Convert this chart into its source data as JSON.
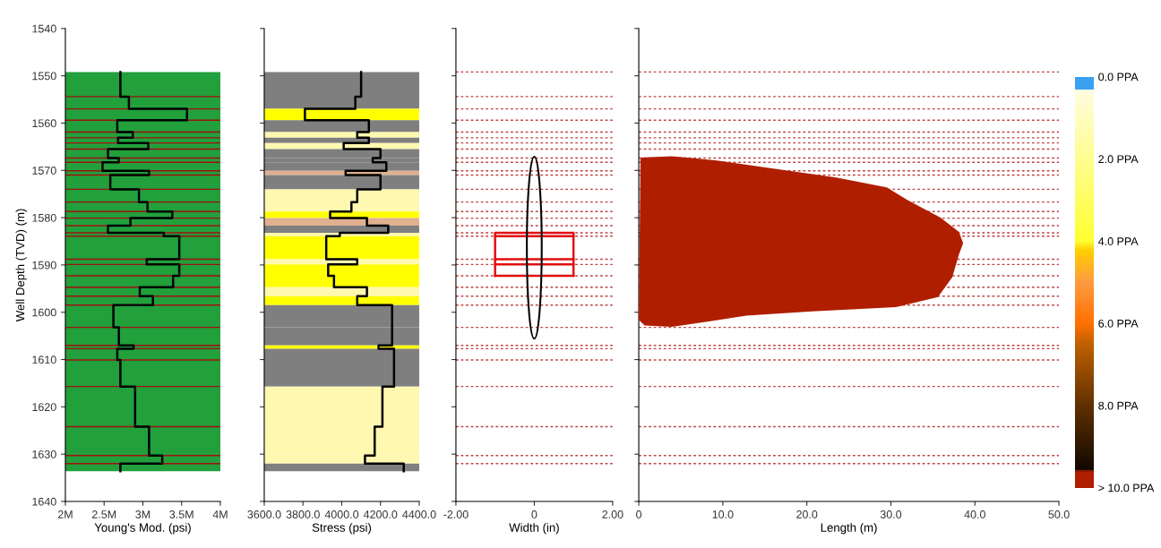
{
  "chart_data": [
    {
      "type": "line",
      "xlabel": "Young's Mod. (psi)",
      "ylabel": "Well Depth (TVD) (m)",
      "xlim": [
        2000000,
        4000000
      ],
      "xticks": [
        {
          "value": 2000000,
          "label": "2M"
        },
        {
          "value": 2500000,
          "label": "2.5M"
        },
        {
          "value": 3000000,
          "label": "3M"
        },
        {
          "value": 3500000,
          "label": "3.5M"
        },
        {
          "value": 4000000,
          "label": "4M"
        }
      ],
      "ylim": [
        1640,
        1540
      ],
      "yticks": [
        1540,
        1550,
        1560,
        1570,
        1580,
        1590,
        1600,
        1610,
        1620,
        1630,
        1640
      ],
      "series": [
        {
          "color": "#000000",
          "x": [
            2710000,
            2710000,
            2820000,
            2820000,
            3570000,
            3570000,
            2670000,
            2670000,
            2870000,
            2870000,
            2680000,
            2680000,
            3070000,
            3070000,
            2550000,
            2550000,
            2690000,
            2690000,
            2480000,
            2480000,
            3080000,
            3080000,
            2580000,
            2580000,
            2950000,
            2950000,
            3060000,
            3060000,
            3380000,
            3380000,
            2840000,
            2840000,
            2550000,
            2550000,
            3270000,
            3270000,
            3470000,
            3470000,
            3050000,
            3050000,
            3470000,
            3470000,
            3390000,
            3390000,
            2960000,
            2960000,
            3130000,
            3130000,
            2620000,
            2620000,
            2690000,
            2690000,
            2880000,
            2880000,
            2670000,
            2670000,
            2710000,
            2710000,
            2900000,
            2900000,
            3080000,
            3080000,
            3250000,
            3250000,
            2710000,
            2710000
          ],
          "values": [
            1549.2,
            1554.4,
            1554.4,
            1557.0,
            1557.0,
            1559.4,
            1559.4,
            1561.9,
            1561.9,
            1563.1,
            1563.1,
            1564.2,
            1564.2,
            1565.5,
            1565.5,
            1567.4,
            1567.4,
            1568.3,
            1568.3,
            1570.1,
            1570.1,
            1571.0,
            1571.0,
            1574.0,
            1574.0,
            1576.7,
            1576.7,
            1578.7,
            1578.7,
            1580.1,
            1580.1,
            1581.7,
            1581.7,
            1583.2,
            1583.2,
            1583.9,
            1583.9,
            1588.8,
            1588.8,
            1589.9,
            1589.9,
            1592.3,
            1592.3,
            1594.7,
            1594.7,
            1596.6,
            1596.6,
            1598.5,
            1598.5,
            1603.2,
            1603.2,
            1607.0,
            1607.0,
            1607.7,
            1607.7,
            1610.1,
            1610.1,
            1615.7,
            1615.7,
            1624.2,
            1624.2,
            1630.3,
            1630.3,
            1632.0,
            1632.0,
            1633.6
          ]
        }
      ],
      "bands": [
        {
          "axis": "y",
          "from": 1549.2,
          "to": 1633.6,
          "color": "#21a03c"
        }
      ],
      "ref_lines": [
        {
          "axis": "y",
          "value": 1554.4,
          "color": "#a01010",
          "line_style": "solid"
        },
        {
          "axis": "y",
          "value": 1557.0,
          "color": "#a01010",
          "line_style": "solid"
        },
        {
          "axis": "y",
          "value": 1559.4,
          "color": "#a01010",
          "line_style": "solid"
        },
        {
          "axis": "y",
          "value": 1561.9,
          "color": "#a01010",
          "line_style": "solid"
        },
        {
          "axis": "y",
          "value": 1563.1,
          "color": "#a01010",
          "line_style": "solid"
        },
        {
          "axis": "y",
          "value": 1564.2,
          "color": "#a01010",
          "line_style": "solid"
        },
        {
          "axis": "y",
          "value": 1565.5,
          "color": "#a01010",
          "line_style": "solid"
        },
        {
          "axis": "y",
          "value": 1567.4,
          "color": "#a01010",
          "line_style": "solid"
        },
        {
          "axis": "y",
          "value": 1568.3,
          "color": "#a01010",
          "line_style": "solid"
        },
        {
          "axis": "y",
          "value": 1570.1,
          "color": "#a01010",
          "line_style": "solid"
        },
        {
          "axis": "y",
          "value": 1571.0,
          "color": "#a01010",
          "line_style": "solid"
        },
        {
          "axis": "y",
          "value": 1574.0,
          "color": "#a01010",
          "line_style": "solid"
        },
        {
          "axis": "y",
          "value": 1576.7,
          "color": "#a01010",
          "line_style": "solid"
        },
        {
          "axis": "y",
          "value": 1578.7,
          "color": "#a01010",
          "line_style": "solid"
        },
        {
          "axis": "y",
          "value": 1580.1,
          "color": "#a01010",
          "line_style": "solid"
        },
        {
          "axis": "y",
          "value": 1581.7,
          "color": "#a01010",
          "line_style": "solid"
        },
        {
          "axis": "y",
          "value": 1583.2,
          "color": "#a01010",
          "line_style": "solid"
        },
        {
          "axis": "y",
          "value": 1583.9,
          "color": "#a01010",
          "line_style": "solid"
        },
        {
          "axis": "y",
          "value": 1588.8,
          "color": "#a01010",
          "line_style": "solid"
        },
        {
          "axis": "y",
          "value": 1589.9,
          "color": "#a01010",
          "line_style": "solid"
        },
        {
          "axis": "y",
          "value": 1592.3,
          "color": "#a01010",
          "line_style": "solid"
        },
        {
          "axis": "y",
          "value": 1594.7,
          "color": "#a01010",
          "line_style": "solid"
        },
        {
          "axis": "y",
          "value": 1596.6,
          "color": "#a01010",
          "line_style": "solid"
        },
        {
          "axis": "y",
          "value": 1598.5,
          "color": "#a01010",
          "line_style": "solid"
        },
        {
          "axis": "y",
          "value": 1603.2,
          "color": "#a01010",
          "line_style": "solid"
        },
        {
          "axis": "y",
          "value": 1607.0,
          "color": "#a01010",
          "line_style": "solid"
        },
        {
          "axis": "y",
          "value": 1607.7,
          "color": "#a01010",
          "line_style": "solid"
        },
        {
          "axis": "y",
          "value": 1610.1,
          "color": "#a01010",
          "line_style": "solid"
        },
        {
          "axis": "y",
          "value": 1615.7,
          "color": "#a01010",
          "line_style": "solid"
        },
        {
          "axis": "y",
          "value": 1624.2,
          "color": "#a01010",
          "line_style": "solid"
        },
        {
          "axis": "y",
          "value": 1630.3,
          "color": "#a01010",
          "line_style": "solid"
        },
        {
          "axis": "y",
          "value": 1632.0,
          "color": "#a01010",
          "line_style": "solid"
        }
      ]
    },
    {
      "type": "line",
      "xlabel": "Stress (psi)",
      "tick_labels": "x",
      "xlim": [
        3600,
        4400
      ],
      "xticks": [
        {
          "value": 3600,
          "label": "3600.0"
        },
        {
          "value": 3800,
          "label": "3800.0"
        },
        {
          "value": 4000,
          "label": "4000.0"
        },
        {
          "value": 4200,
          "label": "4200.0"
        },
        {
          "value": 4400,
          "label": "4400.0"
        }
      ],
      "ylim": [
        1640,
        1540
      ],
      "yticks": [
        1540,
        1550,
        1560,
        1570,
        1580,
        1590,
        1600,
        1610,
        1620,
        1630,
        1640
      ],
      "series": [
        {
          "color": "#000000",
          "x": [
            4100,
            4100,
            4070,
            4070,
            3810,
            3810,
            4140,
            4140,
            4080,
            4080,
            4140,
            4140,
            4010,
            4010,
            4200,
            4200,
            4160,
            4160,
            4230,
            4230,
            4020,
            4020,
            4200,
            4200,
            4080,
            4080,
            4050,
            4050,
            3940,
            3940,
            4130,
            4130,
            4240,
            4240,
            3990,
            3990,
            3920,
            3920,
            4080,
            4080,
            3930,
            3930,
            3960,
            3960,
            4130,
            4130,
            4080,
            4080,
            4260,
            4260,
            4260,
            4260,
            4190,
            4190,
            4270,
            4270,
            4270,
            4270,
            4210,
            4210,
            4170,
            4170,
            4120,
            4120,
            4320,
            4320
          ],
          "values": [
            1549.2,
            1554.4,
            1554.4,
            1557.0,
            1557.0,
            1559.4,
            1559.4,
            1561.9,
            1561.9,
            1563.1,
            1563.1,
            1564.2,
            1564.2,
            1565.5,
            1565.5,
            1567.4,
            1567.4,
            1568.3,
            1568.3,
            1570.1,
            1570.1,
            1571.0,
            1571.0,
            1574.0,
            1574.0,
            1576.7,
            1576.7,
            1578.7,
            1578.7,
            1580.1,
            1580.1,
            1581.7,
            1581.7,
            1583.2,
            1583.2,
            1583.9,
            1583.9,
            1588.8,
            1588.8,
            1589.9,
            1589.9,
            1592.3,
            1592.3,
            1594.7,
            1594.7,
            1596.6,
            1596.6,
            1598.5,
            1598.5,
            1603.2,
            1603.2,
            1607.0,
            1607.0,
            1607.7,
            1607.7,
            1610.1,
            1610.1,
            1615.7,
            1615.7,
            1624.2,
            1624.2,
            1630.3,
            1630.3,
            1632.0,
            1632.0,
            1633.6
          ]
        }
      ],
      "bands": [
        {
          "axis": "y",
          "from": 1549.2,
          "to": 1554.4,
          "color": "#7f7f7f"
        },
        {
          "axis": "y",
          "from": 1554.4,
          "to": 1557.0,
          "color": "#7f7f7f"
        },
        {
          "axis": "y",
          "from": 1557.0,
          "to": 1559.4,
          "color": "#ffff00"
        },
        {
          "axis": "y",
          "from": 1559.4,
          "to": 1561.9,
          "color": "#7f7f7f"
        },
        {
          "axis": "y",
          "from": 1561.9,
          "to": 1563.1,
          "color": "#fff8b0"
        },
        {
          "axis": "y",
          "from": 1563.1,
          "to": 1564.2,
          "color": "#7f7f7f"
        },
        {
          "axis": "y",
          "from": 1564.2,
          "to": 1565.5,
          "color": "#fff8b0"
        },
        {
          "axis": "y",
          "from": 1565.5,
          "to": 1567.4,
          "color": "#7f7f7f"
        },
        {
          "axis": "y",
          "from": 1567.4,
          "to": 1568.3,
          "color": "#7f7f7f"
        },
        {
          "axis": "y",
          "from": 1568.3,
          "to": 1570.1,
          "color": "#7f7f7f"
        },
        {
          "axis": "y",
          "from": 1570.1,
          "to": 1571.0,
          "color": "#e0b090"
        },
        {
          "axis": "y",
          "from": 1571.0,
          "to": 1574.0,
          "color": "#7f7f7f"
        },
        {
          "axis": "y",
          "from": 1574.0,
          "to": 1576.7,
          "color": "#fff8b0"
        },
        {
          "axis": "y",
          "from": 1576.7,
          "to": 1578.7,
          "color": "#fff8b0"
        },
        {
          "axis": "y",
          "from": 1578.7,
          "to": 1580.1,
          "color": "#ffff00"
        },
        {
          "axis": "y",
          "from": 1580.1,
          "to": 1581.7,
          "color": "#e0b090"
        },
        {
          "axis": "y",
          "from": 1581.7,
          "to": 1583.2,
          "color": "#7f7f7f"
        },
        {
          "axis": "y",
          "from": 1583.2,
          "to": 1583.9,
          "color": "#fff8b0"
        },
        {
          "axis": "y",
          "from": 1583.9,
          "to": 1588.8,
          "color": "#ffff00"
        },
        {
          "axis": "y",
          "from": 1588.8,
          "to": 1589.9,
          "color": "#fff8b0"
        },
        {
          "axis": "y",
          "from": 1589.9,
          "to": 1592.3,
          "color": "#ffff00"
        },
        {
          "axis": "y",
          "from": 1592.3,
          "to": 1594.7,
          "color": "#ffff00"
        },
        {
          "axis": "y",
          "from": 1594.7,
          "to": 1596.6,
          "color": "#fff8b0"
        },
        {
          "axis": "y",
          "from": 1596.6,
          "to": 1598.5,
          "color": "#ffff00"
        },
        {
          "axis": "y",
          "from": 1598.5,
          "to": 1603.2,
          "color": "#7f7f7f"
        },
        {
          "axis": "y",
          "from": 1603.2,
          "to": 1607.0,
          "color": "#7f7f7f"
        },
        {
          "axis": "y",
          "from": 1607.0,
          "to": 1607.7,
          "color": "#ffff00"
        },
        {
          "axis": "y",
          "from": 1607.7,
          "to": 1610.1,
          "color": "#7f7f7f"
        },
        {
          "axis": "y",
          "from": 1610.1,
          "to": 1615.7,
          "color": "#7f7f7f"
        },
        {
          "axis": "y",
          "from": 1615.7,
          "to": 1624.2,
          "color": "#fff8b0"
        },
        {
          "axis": "y",
          "from": 1624.2,
          "to": 1630.3,
          "color": "#fff8b0"
        },
        {
          "axis": "y",
          "from": 1630.3,
          "to": 1632.0,
          "color": "#fff8b0"
        },
        {
          "axis": "y",
          "from": 1632.0,
          "to": 1633.6,
          "color": "#7f7f7f"
        }
      ]
    },
    {
      "type": "line",
      "xlabel": "Width (in)",
      "tick_labels": "x",
      "xlim": [
        -2,
        2
      ],
      "xticks": [
        {
          "value": -2,
          "label": "-2.00"
        },
        0,
        {
          "value": 2,
          "label": "2.00"
        }
      ],
      "ylim": [
        1640,
        1540
      ],
      "yticks": [
        1540,
        1550,
        1560,
        1570,
        1580,
        1590,
        1600,
        1610,
        1620,
        1630,
        1640
      ],
      "series": [
        {
          "color": "#e01010",
          "x": [
            -1,
            -1,
            1,
            1
          ],
          "values": [
            1592.3,
            1583.2,
            1583.2,
            1592.3
          ]
        },
        {
          "color": "#e01010",
          "x": [
            -1,
            1
          ],
          "values": [
            1583.9,
            1583.9
          ]
        },
        {
          "color": "#e01010",
          "x": [
            -1,
            1
          ],
          "values": [
            1588.8,
            1588.8
          ]
        },
        {
          "color": "#e01010",
          "x": [
            -1,
            1
          ],
          "values": [
            1589.9,
            1589.9
          ]
        },
        {
          "color": "#e01010",
          "x": [
            -1,
            1
          ],
          "values": [
            1592.3,
            1592.3
          ]
        }
      ],
      "ref_lines": [
        {
          "axis": "y",
          "value": 1549.2,
          "color": "#c04040",
          "line_style": "dotted"
        },
        {
          "axis": "y",
          "value": 1554.4,
          "color": "#c04040",
          "line_style": "dotted"
        },
        {
          "axis": "y",
          "value": 1557.0,
          "color": "#c04040",
          "line_style": "dotted"
        },
        {
          "axis": "y",
          "value": 1559.4,
          "color": "#c04040",
          "line_style": "dotted"
        },
        {
          "axis": "y",
          "value": 1561.9,
          "color": "#c04040",
          "line_style": "dotted"
        },
        {
          "axis": "y",
          "value": 1563.1,
          "color": "#c04040",
          "line_style": "dotted"
        },
        {
          "axis": "y",
          "value": 1564.2,
          "color": "#c04040",
          "line_style": "dotted"
        },
        {
          "axis": "y",
          "value": 1565.5,
          "color": "#c04040",
          "line_style": "dotted"
        },
        {
          "axis": "y",
          "value": 1567.4,
          "color": "#c04040",
          "line_style": "dotted"
        },
        {
          "axis": "y",
          "value": 1568.3,
          "color": "#c04040",
          "line_style": "dotted"
        },
        {
          "axis": "y",
          "value": 1570.1,
          "color": "#c04040",
          "line_style": "dotted"
        },
        {
          "axis": "y",
          "value": 1571.0,
          "color": "#c04040",
          "line_style": "dotted"
        },
        {
          "axis": "y",
          "value": 1574.0,
          "color": "#c04040",
          "line_style": "dotted"
        },
        {
          "axis": "y",
          "value": 1576.7,
          "color": "#c04040",
          "line_style": "dotted"
        },
        {
          "axis": "y",
          "value": 1578.7,
          "color": "#c04040",
          "line_style": "dotted"
        },
        {
          "axis": "y",
          "value": 1580.1,
          "color": "#c04040",
          "line_style": "dotted"
        },
        {
          "axis": "y",
          "value": 1581.7,
          "color": "#c04040",
          "line_style": "dotted"
        },
        {
          "axis": "y",
          "value": 1583.2,
          "color": "#c04040",
          "line_style": "dotted"
        },
        {
          "axis": "y",
          "value": 1583.9,
          "color": "#c04040",
          "line_style": "dotted"
        },
        {
          "axis": "y",
          "value": 1588.8,
          "color": "#c04040",
          "line_style": "dotted"
        },
        {
          "axis": "y",
          "value": 1589.9,
          "color": "#c04040",
          "line_style": "dotted"
        },
        {
          "axis": "y",
          "value": 1592.3,
          "color": "#c04040",
          "line_style": "dotted"
        },
        {
          "axis": "y",
          "value": 1594.7,
          "color": "#c04040",
          "line_style": "dotted"
        },
        {
          "axis": "y",
          "value": 1596.6,
          "color": "#c04040",
          "line_style": "dotted"
        },
        {
          "axis": "y",
          "value": 1598.5,
          "color": "#c04040",
          "line_style": "dotted"
        },
        {
          "axis": "y",
          "value": 1603.2,
          "color": "#c04040",
          "line_style": "dotted"
        },
        {
          "axis": "y",
          "value": 1607.0,
          "color": "#c04040",
          "line_style": "dotted"
        },
        {
          "axis": "y",
          "value": 1607.7,
          "color": "#c04040",
          "line_style": "dotted"
        },
        {
          "axis": "y",
          "value": 1610.1,
          "color": "#c04040",
          "line_style": "dotted"
        },
        {
          "axis": "y",
          "value": 1615.7,
          "color": "#c04040",
          "line_style": "dotted"
        },
        {
          "axis": "y",
          "value": 1624.2,
          "color": "#c04040",
          "line_style": "dotted"
        },
        {
          "axis": "y",
          "value": 1630.3,
          "color": "#c04040",
          "line_style": "dotted"
        },
        {
          "axis": "y",
          "value": 1632.0,
          "color": "#c04040",
          "line_style": "dotted"
        }
      ]
    },
    {
      "type": "area",
      "xlabel": "Length (m)",
      "tick_labels": "x",
      "xlim": [
        0,
        50
      ],
      "xticks": [
        0,
        {
          "value": 10,
          "label": "10.0"
        },
        {
          "value": 20,
          "label": "20.0"
        },
        {
          "value": 30,
          "label": "30.0"
        },
        {
          "value": 40,
          "label": "40.0"
        },
        {
          "value": 50,
          "label": "50.0"
        }
      ],
      "ylim": [
        1640,
        1540
      ],
      "yticks": [
        1540,
        1550,
        1560,
        1570,
        1580,
        1590,
        1600,
        1610,
        1620,
        1630,
        1640
      ],
      "clim": [
        0,
        10
      ],
      "cticks": [
        {
          "value": 0,
          "label": "0.0 PPA"
        },
        {
          "value": 2,
          "label": "2.0 PPA"
        },
        {
          "value": 4,
          "label": "4.0 PPA"
        },
        {
          "value": 6,
          "label": "6.0 PPA"
        },
        {
          "value": 8,
          "label": "8.0 PPA"
        },
        {
          "value": 10,
          "label": "> 10.0 PPA"
        }
      ],
      "series": [
        {
          "color": "#b01e00",
          "x": [
            0.2,
            3.9,
            9.3,
            16.4,
            23.5,
            29.5,
            32.0,
            35.9,
            38.1,
            38.6,
            38.1,
            37.3,
            35.6,
            30.6,
            20.6,
            12.8,
            8.5,
            3.9,
            0.7,
            0.0,
            0.2
          ],
          "values": [
            1567.3,
            1567.0,
            1567.9,
            1569.7,
            1571.5,
            1573.6,
            1576.3,
            1580.0,
            1583.0,
            1585.4,
            1587.8,
            1592.6,
            1596.8,
            1598.9,
            1599.8,
            1600.7,
            1601.9,
            1603.1,
            1602.8,
            1601.6,
            1567.3
          ]
        }
      ],
      "ref_lines": [
        {
          "axis": "y",
          "value": 1549.2,
          "color": "#c04040",
          "line_style": "dotted"
        },
        {
          "axis": "y",
          "value": 1554.4,
          "color": "#c04040",
          "line_style": "dotted"
        },
        {
          "axis": "y",
          "value": 1557.0,
          "color": "#c04040",
          "line_style": "dotted"
        },
        {
          "axis": "y",
          "value": 1559.4,
          "color": "#c04040",
          "line_style": "dotted"
        },
        {
          "axis": "y",
          "value": 1561.9,
          "color": "#c04040",
          "line_style": "dotted"
        },
        {
          "axis": "y",
          "value": 1563.1,
          "color": "#c04040",
          "line_style": "dotted"
        },
        {
          "axis": "y",
          "value": 1564.2,
          "color": "#c04040",
          "line_style": "dotted"
        },
        {
          "axis": "y",
          "value": 1565.5,
          "color": "#c04040",
          "line_style": "dotted"
        },
        {
          "axis": "y",
          "value": 1567.4,
          "color": "#c04040",
          "line_style": "dotted"
        },
        {
          "axis": "y",
          "value": 1568.3,
          "color": "#c04040",
          "line_style": "dotted"
        },
        {
          "axis": "y",
          "value": 1570.1,
          "color": "#c04040",
          "line_style": "dotted"
        },
        {
          "axis": "y",
          "value": 1571.0,
          "color": "#c04040",
          "line_style": "dotted"
        },
        {
          "axis": "y",
          "value": 1574.0,
          "color": "#c04040",
          "line_style": "dotted"
        },
        {
          "axis": "y",
          "value": 1576.7,
          "color": "#c04040",
          "line_style": "dotted"
        },
        {
          "axis": "y",
          "value": 1578.7,
          "color": "#c04040",
          "line_style": "dotted"
        },
        {
          "axis": "y",
          "value": 1580.1,
          "color": "#c04040",
          "line_style": "dotted"
        },
        {
          "axis": "y",
          "value": 1581.7,
          "color": "#c04040",
          "line_style": "dotted"
        },
        {
          "axis": "y",
          "value": 1583.2,
          "color": "#c04040",
          "line_style": "dotted"
        },
        {
          "axis": "y",
          "value": 1583.9,
          "color": "#c04040",
          "line_style": "dotted"
        },
        {
          "axis": "y",
          "value": 1588.8,
          "color": "#c04040",
          "line_style": "dotted"
        },
        {
          "axis": "y",
          "value": 1589.9,
          "color": "#c04040",
          "line_style": "dotted"
        },
        {
          "axis": "y",
          "value": 1592.3,
          "color": "#c04040",
          "line_style": "dotted"
        },
        {
          "axis": "y",
          "value": 1594.7,
          "color": "#c04040",
          "line_style": "dotted"
        },
        {
          "axis": "y",
          "value": 1596.6,
          "color": "#c04040",
          "line_style": "dotted"
        },
        {
          "axis": "y",
          "value": 1598.5,
          "color": "#c04040",
          "line_style": "dotted"
        },
        {
          "axis": "y",
          "value": 1603.2,
          "color": "#c04040",
          "line_style": "dotted"
        },
        {
          "axis": "y",
          "value": 1607.0,
          "color": "#c04040",
          "line_style": "dotted"
        },
        {
          "axis": "y",
          "value": 1607.7,
          "color": "#c04040",
          "line_style": "dotted"
        },
        {
          "axis": "y",
          "value": 1610.1,
          "color": "#c04040",
          "line_style": "dotted"
        },
        {
          "axis": "y",
          "value": 1615.7,
          "color": "#c04040",
          "line_style": "dotted"
        },
        {
          "axis": "y",
          "value": 1624.2,
          "color": "#c04040",
          "line_style": "dotted"
        },
        {
          "axis": "y",
          "value": 1630.3,
          "color": "#c04040",
          "line_style": "dotted"
        },
        {
          "axis": "y",
          "value": 1632.0,
          "color": "#c04040",
          "line_style": "dotted"
        }
      ]
    }
  ]
}
